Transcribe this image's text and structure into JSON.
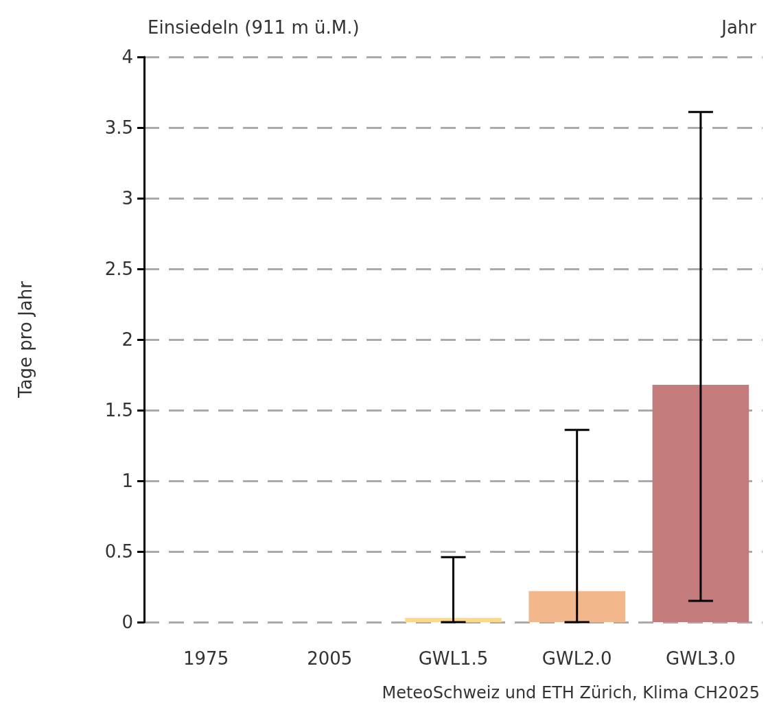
{
  "chart_data": {
    "type": "bar",
    "title": "Einsiedeln (911 m ü.M.)",
    "subtitle": "Jahr",
    "ylabel": "Tage pro Jahr",
    "categories": [
      "1975",
      "2005",
      "GWL1.5",
      "GWL2.0",
      "GWL3.0"
    ],
    "values": [
      0,
      0,
      0.03,
      0.22,
      1.68
    ],
    "colors": [
      "#d9d9d9",
      "#a6a6a6",
      "#fad98a",
      "#f3b78c",
      "#c47b7b"
    ],
    "errors": [
      null,
      null,
      [
        0,
        0.46
      ],
      [
        0,
        1.36
      ],
      [
        0.15,
        3.61
      ]
    ],
    "ylim": [
      0,
      4
    ],
    "yticks": [
      0,
      0.5,
      1,
      1.5,
      2,
      2.5,
      3,
      3.5,
      4
    ],
    "grid": "y",
    "annotations": [
      "MeteoSchweiz und ETH Zürich, Klima CH2025"
    ]
  }
}
